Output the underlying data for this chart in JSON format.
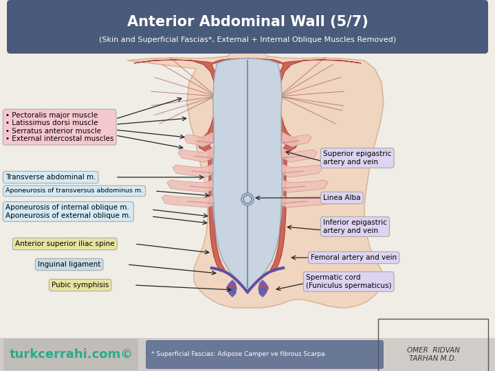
{
  "title": "Anterior Abdominal Wall (5/7)",
  "subtitle": "(Skin and Superficial Fascias*, External + Internal Oblique Muscles Removed)",
  "title_bg": "#4a5a7a",
  "title_color": "#ffffff",
  "bg_color": "#f0ece6",
  "skin_color": "#f0d5c0",
  "skin_edge": "#d4b090",
  "muscle_red": "#cc6655",
  "muscle_red_dark": "#b04040",
  "muscle_red_light": "#dd8875",
  "apo_color": "#c8d4e0",
  "apo_edge": "#9aa8ba",
  "rib_pink": "#f0c0b8",
  "lig_purple": "#6050a0",
  "cord_red": "#cc4444",
  "cord_blue": "#4466aa",
  "footer_bg": "#d0cdc8",
  "footer_turkce_bg": "#c0bdb8",
  "footer_note_bg": "#6a7898",
  "footer_left_text": "turkcerrahi.com©",
  "footer_left_color": "#2aaa8a",
  "footer_mid_text": "* Superficial Fascias: Adipose Camper ve fibrous Scarpa",
  "footer_right_text": "OMER  RIDVAN\nTARHAN M.D."
}
